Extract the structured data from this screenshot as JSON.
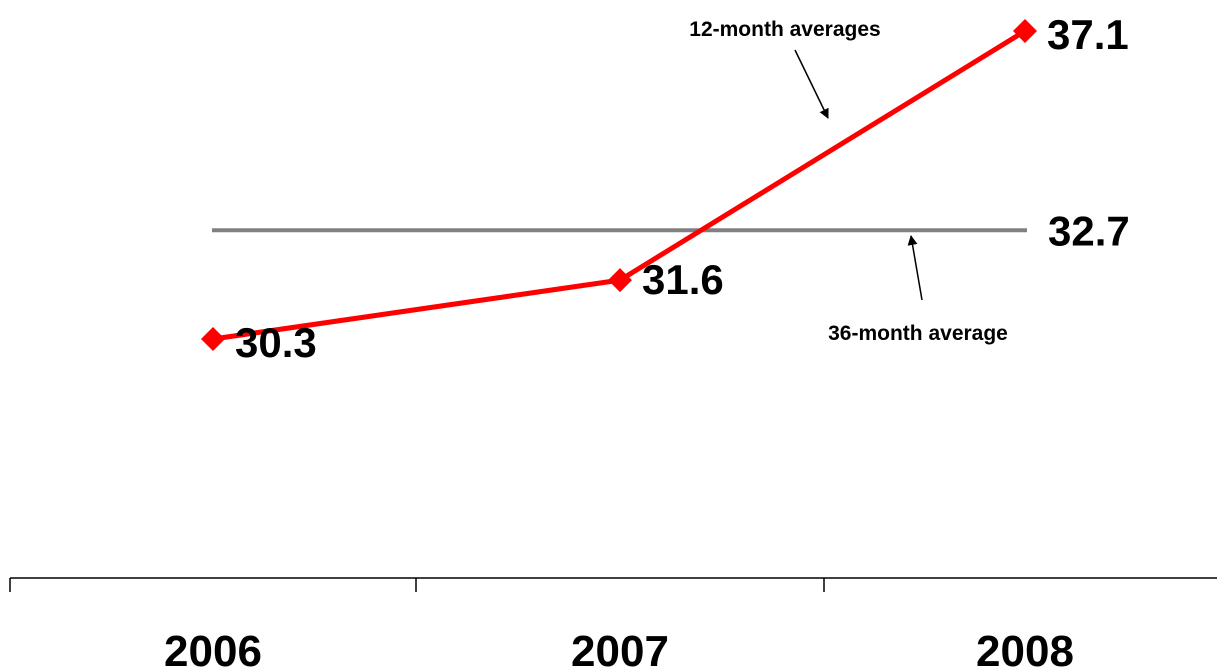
{
  "chart_data": {
    "type": "line",
    "categories": [
      "2006",
      "2007",
      "2008"
    ],
    "series": [
      {
        "name": "12-month averages",
        "values": [
          30.3,
          31.6,
          37.1
        ],
        "labels": [
          "30.3",
          "31.6",
          "37.1"
        ],
        "color": "#ff0000",
        "marker": "diamond"
      }
    ],
    "reference_line": {
      "name": "36-month average",
      "value": 32.7,
      "label": "32.7",
      "color": "#808080"
    },
    "annotations": [
      {
        "text": "12-month averages",
        "target": "12-month averages"
      },
      {
        "text": "36-month average",
        "target": "36-month average"
      }
    ],
    "title": "",
    "xlabel": "",
    "ylabel": "",
    "y_axis_visible": false,
    "grid": false,
    "legend": "none"
  }
}
